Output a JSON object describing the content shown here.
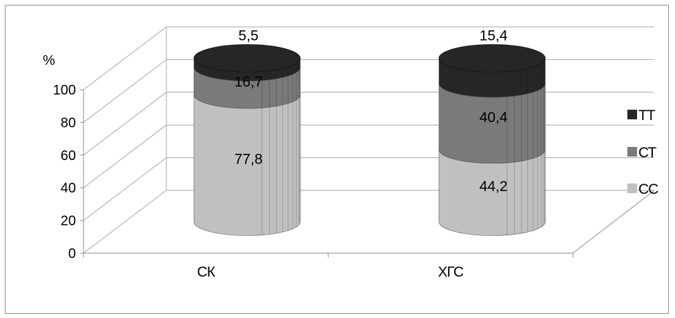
{
  "chart_data": {
    "type": "bar",
    "style": "3d-stacked-cylinder",
    "categories": [
      "СК",
      "ХГС"
    ],
    "series": [
      {
        "name": "СС",
        "values": [
          77.8,
          44.2
        ],
        "labels": [
          "77,8",
          "44,2"
        ],
        "color": "#c0c0c0"
      },
      {
        "name": "СТ",
        "values": [
          16.7,
          40.4
        ],
        "labels": [
          "16,7",
          "40,4"
        ],
        "color": "#7a7a7a"
      },
      {
        "name": "ТТ",
        "values": [
          5.5,
          15.4
        ],
        "labels": [
          "5,5",
          "15,4"
        ],
        "color": "#262626"
      }
    ],
    "ylabel": "%",
    "ylim": [
      0,
      100
    ],
    "yticks": [
      "0",
      "20",
      "40",
      "60",
      "80",
      "100"
    ],
    "legend": [
      "ТТ",
      "СТ",
      "СС"
    ],
    "legend_position": "right",
    "grid": true
  }
}
